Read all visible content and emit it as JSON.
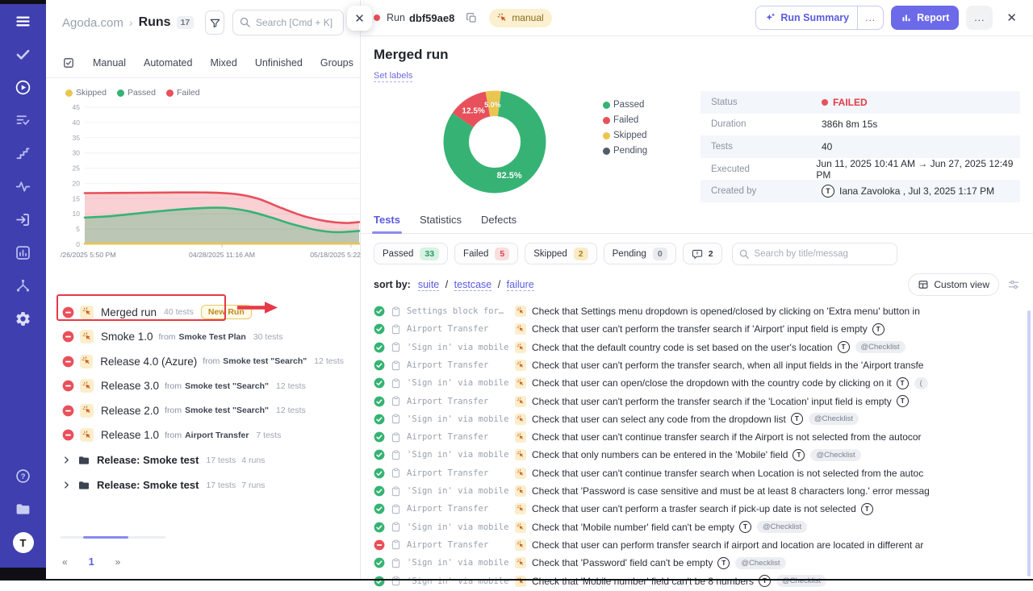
{
  "colors": {
    "sidebar": "#3f3fb0",
    "accent": "#5b5be0",
    "passed": "#36b374",
    "failed": "#e8505b",
    "skipped": "#eac54f",
    "pending": "#535b6b"
  },
  "sidebar": {
    "top_icons": [
      "menu-icon",
      "check-icon",
      "play-circle-icon",
      "list-check-icon",
      "steps-icon",
      "activity-icon",
      "import-icon",
      "chart-box-icon",
      "branch-icon",
      "gear-icon"
    ],
    "bottom_icons": [
      "help-icon",
      "folder-light-icon"
    ],
    "avatar_letter": "T"
  },
  "left_panel": {
    "breadcrumb": {
      "project": "Agoda.com",
      "separator": "›",
      "section": "Runs",
      "count": "17"
    },
    "search": {
      "placeholder": "Search [Cmd + K]"
    },
    "close_label": "✕",
    "tabs": [
      "Manual",
      "Automated",
      "Mixed",
      "Unfinished",
      "Groups"
    ],
    "legend": [
      {
        "label": "Skipped",
        "color": "#eac54f"
      },
      {
        "label": "Passed",
        "color": "#36b374"
      },
      {
        "label": "Failed",
        "color": "#e8505b"
      }
    ],
    "runs": [
      {
        "name": "Merged run",
        "meta": "40 tests",
        "badge": "New Run",
        "highlight": true
      },
      {
        "name": "Smoke 1.0",
        "from_label": "from",
        "plan": "Smoke Test Plan",
        "meta": "30 tests"
      },
      {
        "name": "Release 4.0 (Azure)",
        "from_label": "from",
        "plan": "Smoke test \"Search\"",
        "meta": "12 tests"
      },
      {
        "name": "Release 3.0",
        "from_label": "from",
        "plan": "Smoke test \"Search\"",
        "meta": "12 tests"
      },
      {
        "name": "Release 2.0",
        "from_label": "from",
        "plan": "Smoke test \"Search\"",
        "meta": "12 tests"
      },
      {
        "name": "Release 1.0",
        "from_label": "from",
        "plan": "Airport Transfer",
        "meta": "7 tests"
      }
    ],
    "folders": [
      {
        "name": "Release: Smoke test",
        "tests": "17 tests",
        "runs": "4 runs"
      },
      {
        "name": "Release: Smoke test",
        "tests": "17 tests",
        "runs": "7 runs"
      }
    ],
    "pagination": {
      "prev": "«",
      "current": "1",
      "next": "»"
    }
  },
  "detail": {
    "topbar": {
      "run_label": "Run",
      "run_id": "dbf59ae8",
      "manual_badge": "manual",
      "run_summary": "Run Summary",
      "more": "...",
      "report": "Report",
      "close": "✕"
    },
    "title": "Merged run",
    "set_labels": "Set labels",
    "legend": [
      {
        "label": "Passed",
        "color": "#36b374"
      },
      {
        "label": "Failed",
        "color": "#e8505b"
      },
      {
        "label": "Skipped",
        "color": "#eac54f"
      },
      {
        "label": "Pending",
        "color": "#535b6b"
      }
    ],
    "info": [
      {
        "label": "Status",
        "type": "status",
        "value": "FAILED"
      },
      {
        "label": "Duration",
        "value": "386h 8m 15s"
      },
      {
        "label": "Tests",
        "value": "40"
      },
      {
        "label": "Executed",
        "value": "Jun 11, 2025 10:41 AM → Jun 27, 2025 12:49 PM"
      },
      {
        "label": "Created by",
        "type": "user",
        "avatar": "T",
        "value": "Iana Zavoloka , Jul 3, 2025 1:17 PM"
      }
    ],
    "tabs": [
      {
        "label": "Tests",
        "active": true
      },
      {
        "label": "Statistics",
        "active": false
      },
      {
        "label": "Defects",
        "active": false
      }
    ],
    "filters": [
      {
        "label": "Passed",
        "count": "33",
        "type": "passed"
      },
      {
        "label": "Failed",
        "count": "5",
        "type": "failed"
      },
      {
        "label": "Skipped",
        "count": "2",
        "type": "skipped"
      },
      {
        "label": "Pending",
        "count": "0",
        "type": "pending"
      },
      {
        "icon": "comment",
        "count": "2",
        "type": "comment"
      }
    ],
    "search_placeholder": "Search by title/messag",
    "sort": {
      "label": "sort by:",
      "separator": "/",
      "options": [
        "suite",
        "testcase",
        "failure"
      ]
    },
    "custom_view": "Custom view",
    "tests": [
      {
        "status": "passed",
        "suite": "Settings block for…",
        "title": "Check that Settings menu dropdown is opened/closed by clicking on 'Extra menu' button in",
        "avatar": false,
        "badge": null
      },
      {
        "status": "passed",
        "suite": "Airport Transfer",
        "title": "Check that user can't perform the transfer search if 'Airport' input field is empty",
        "avatar": true,
        "badge": null
      },
      {
        "status": "passed",
        "suite": "'Sign in' via mobile",
        "title": "Check that the default country code is set based on the user's location",
        "avatar": true,
        "badge": "@Checklist"
      },
      {
        "status": "passed",
        "suite": "Airport Transfer",
        "title": "Check that user can't perform the transfer search, when all input fields in the 'Airport transfe",
        "avatar": false,
        "badge": null
      },
      {
        "status": "passed",
        "suite": "'Sign in' via mobile",
        "title": "Check that user can open/close the dropdown with the country code by clicking on it",
        "avatar": true,
        "badge": "("
      },
      {
        "status": "passed",
        "suite": "Airport Transfer",
        "title": "Check that user can't perform the transfer search if the 'Location' input field is empty",
        "avatar": true,
        "badge": null
      },
      {
        "status": "passed",
        "suite": "'Sign in' via mobile",
        "title": "Check that user can select any code from the dropdown list",
        "avatar": true,
        "badge": "@Checklist"
      },
      {
        "status": "passed",
        "suite": "Airport Transfer",
        "title": "Check that user can't continue transfer search if the Airport is not selected from the autocor",
        "avatar": false,
        "badge": null
      },
      {
        "status": "passed",
        "suite": "'Sign in' via mobile",
        "title": "Check that only numbers can be entered in the 'Mobile' field",
        "avatar": true,
        "badge": "@Checklist"
      },
      {
        "status": "passed",
        "suite": "Airport Transfer",
        "title": "Check that user can't continue transfer search when Location is not selected from the autoc",
        "avatar": false,
        "badge": null
      },
      {
        "status": "passed",
        "suite": "'Sign in' via mobile",
        "title": "Check that 'Password is case sensitive and must be at least 8 characters long.' error messag",
        "avatar": false,
        "badge": null
      },
      {
        "status": "passed",
        "suite": "Airport Transfer",
        "title": "Check that user can't perform a trasfer search if pick-up date is not selected",
        "avatar": true,
        "badge": null
      },
      {
        "status": "passed",
        "suite": "'Sign in' via mobile",
        "title": "Check that 'Mobile number' field can't be empty",
        "avatar": true,
        "badge": "@Checklist"
      },
      {
        "status": "failed",
        "suite": "Airport Transfer",
        "title": "Check that user can perform transfer search if airport and location are located in different ar",
        "avatar": false,
        "badge": null
      },
      {
        "status": "passed",
        "suite": "'Sign in' via mobile",
        "title": "Check that 'Password' field can't be empty",
        "avatar": true,
        "badge": "@Checklist"
      },
      {
        "status": "passed",
        "suite": "'Sign in' via mobile",
        "title": "Check that 'Mobile number' field can't be 8 numbers",
        "avatar": true,
        "badge": "@Checklist"
      }
    ]
  },
  "chart_data": [
    {
      "type": "area",
      "title": "",
      "ylabel": "",
      "xlabel": "",
      "ylim": [
        0,
        45
      ],
      "yticks": [
        0,
        5,
        10,
        15,
        20,
        25,
        30,
        35,
        40,
        45
      ],
      "xtick_labels": [
        "/26/2025 5:50 PM",
        "04/28/2025 11:16 AM",
        "05/18/2025 5:22"
      ],
      "grid": true,
      "legend_position": "top-left",
      "series": [
        {
          "name": "Failed",
          "color": "#e8505b",
          "fill": "rgba(233,86,97,0.28)",
          "points": [
            [
              0,
              16.8
            ],
            [
              0.15,
              16.9
            ],
            [
              0.3,
              17
            ],
            [
              0.45,
              17
            ],
            [
              0.55,
              16.5
            ],
            [
              0.63,
              15
            ],
            [
              0.72,
              11.8
            ],
            [
              0.8,
              9.2
            ],
            [
              0.88,
              7.6
            ],
            [
              0.95,
              7
            ],
            [
              1,
              7.3
            ]
          ]
        },
        {
          "name": "Passed",
          "color": "#36b374",
          "fill": "rgba(57,176,116,0.32)",
          "points": [
            [
              0,
              8.8
            ],
            [
              0.1,
              9.3
            ],
            [
              0.22,
              10.4
            ],
            [
              0.34,
              11.4
            ],
            [
              0.45,
              12
            ],
            [
              0.52,
              11.9
            ],
            [
              0.6,
              10.8
            ],
            [
              0.68,
              8.8
            ],
            [
              0.76,
              6.5
            ],
            [
              0.85,
              4.6
            ],
            [
              0.92,
              4
            ],
            [
              1,
              4.4
            ]
          ]
        },
        {
          "name": "Skipped",
          "color": "#eac54f",
          "fill": "none",
          "points": [
            [
              0,
              0.2
            ],
            [
              1,
              0.2
            ]
          ]
        }
      ]
    },
    {
      "type": "pie",
      "title": "",
      "donut": true,
      "legend_position": "right",
      "slices": [
        {
          "label": "Passed",
          "value": 82.5,
          "display": "82.5%",
          "color": "#36b374"
        },
        {
          "label": "Failed",
          "value": 12.5,
          "display": "12.5%",
          "color": "#e8505b"
        },
        {
          "label": "Skipped",
          "value": 5.0,
          "display": "5.0%",
          "color": "#eac54f"
        },
        {
          "label": "Pending",
          "value": 0,
          "display": "",
          "color": "#535b6b"
        }
      ]
    }
  ]
}
